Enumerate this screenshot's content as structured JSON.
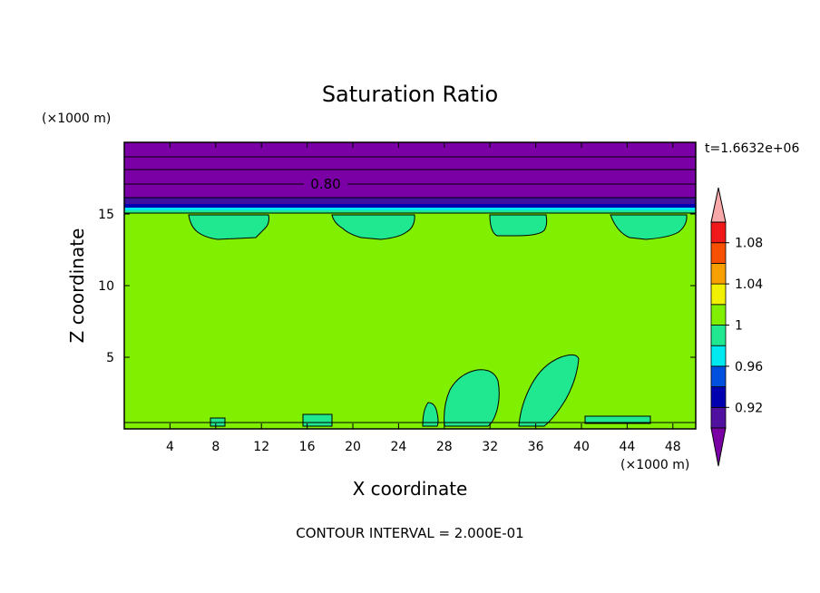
{
  "chart_data": {
    "type": "heatmap",
    "title": "Saturation Ratio",
    "xlabel": "X coordinate",
    "ylabel": "Z coordinate",
    "x_unit": "(×1000 m)",
    "y_unit": "(×1000 m)",
    "time_label": "t=1.6632e+06",
    "footer": "CONTOUR INTERVAL = 2.000E-01",
    "xlim": [
      0,
      50
    ],
    "ylim": [
      0,
      20
    ],
    "x_ticks": [
      4,
      8,
      12,
      16,
      20,
      24,
      28,
      32,
      36,
      40,
      44,
      48
    ],
    "y_ticks": [
      5,
      10,
      15
    ],
    "contour_label": "0.80",
    "colorbar": {
      "levels": [
        0.9,
        0.92,
        0.94,
        0.96,
        0.98,
        1.0,
        1.02,
        1.04,
        1.06,
        1.08,
        1.1
      ],
      "tick_labels": [
        "0.92",
        "0.96",
        "1",
        "1.04",
        "1.08"
      ],
      "tick_values": [
        0.92,
        0.96,
        1.0,
        1.04,
        1.08
      ],
      "band_colors": [
        "#5010a0",
        "#0000b0",
        "#0050e0",
        "#00e8f0",
        "#20e890",
        "#80f000",
        "#f0f000",
        "#f8a000",
        "#f85000",
        "#f01818"
      ],
      "under_color": "#7a00a6",
      "over_color": "#f8a8a8"
    },
    "regions": {
      "upper_layer": {
        "z_range": [
          15.9,
          20
        ],
        "color": "#7a00a6",
        "meaning": "below 0.90"
      },
      "thin_band": {
        "z_range": [
          15.2,
          15.9
        ],
        "color": "#0000b0"
      },
      "main_field": {
        "color": "#80f000",
        "meaning": "1.00-1.02"
      },
      "cells": [
        {
          "x_range": [
            28.5,
            33
          ],
          "z_range": [
            0,
            4.0
          ]
        },
        {
          "x_range": [
            34,
            39.5
          ],
          "z_range": [
            0,
            5.1
          ]
        }
      ],
      "anvil_patches": [
        {
          "x_range": [
            6,
            13
          ],
          "z_range": [
            13.2,
            15.1
          ]
        },
        {
          "x_range": [
            18,
            25
          ],
          "z_range": [
            13.3,
            15.1
          ]
        },
        {
          "x_range": [
            31,
            37
          ],
          "z_range": [
            13.6,
            15.1
          ]
        },
        {
          "x_range": [
            42,
            48.5
          ],
          "z_range": [
            13.3,
            15.1
          ]
        }
      ]
    }
  }
}
